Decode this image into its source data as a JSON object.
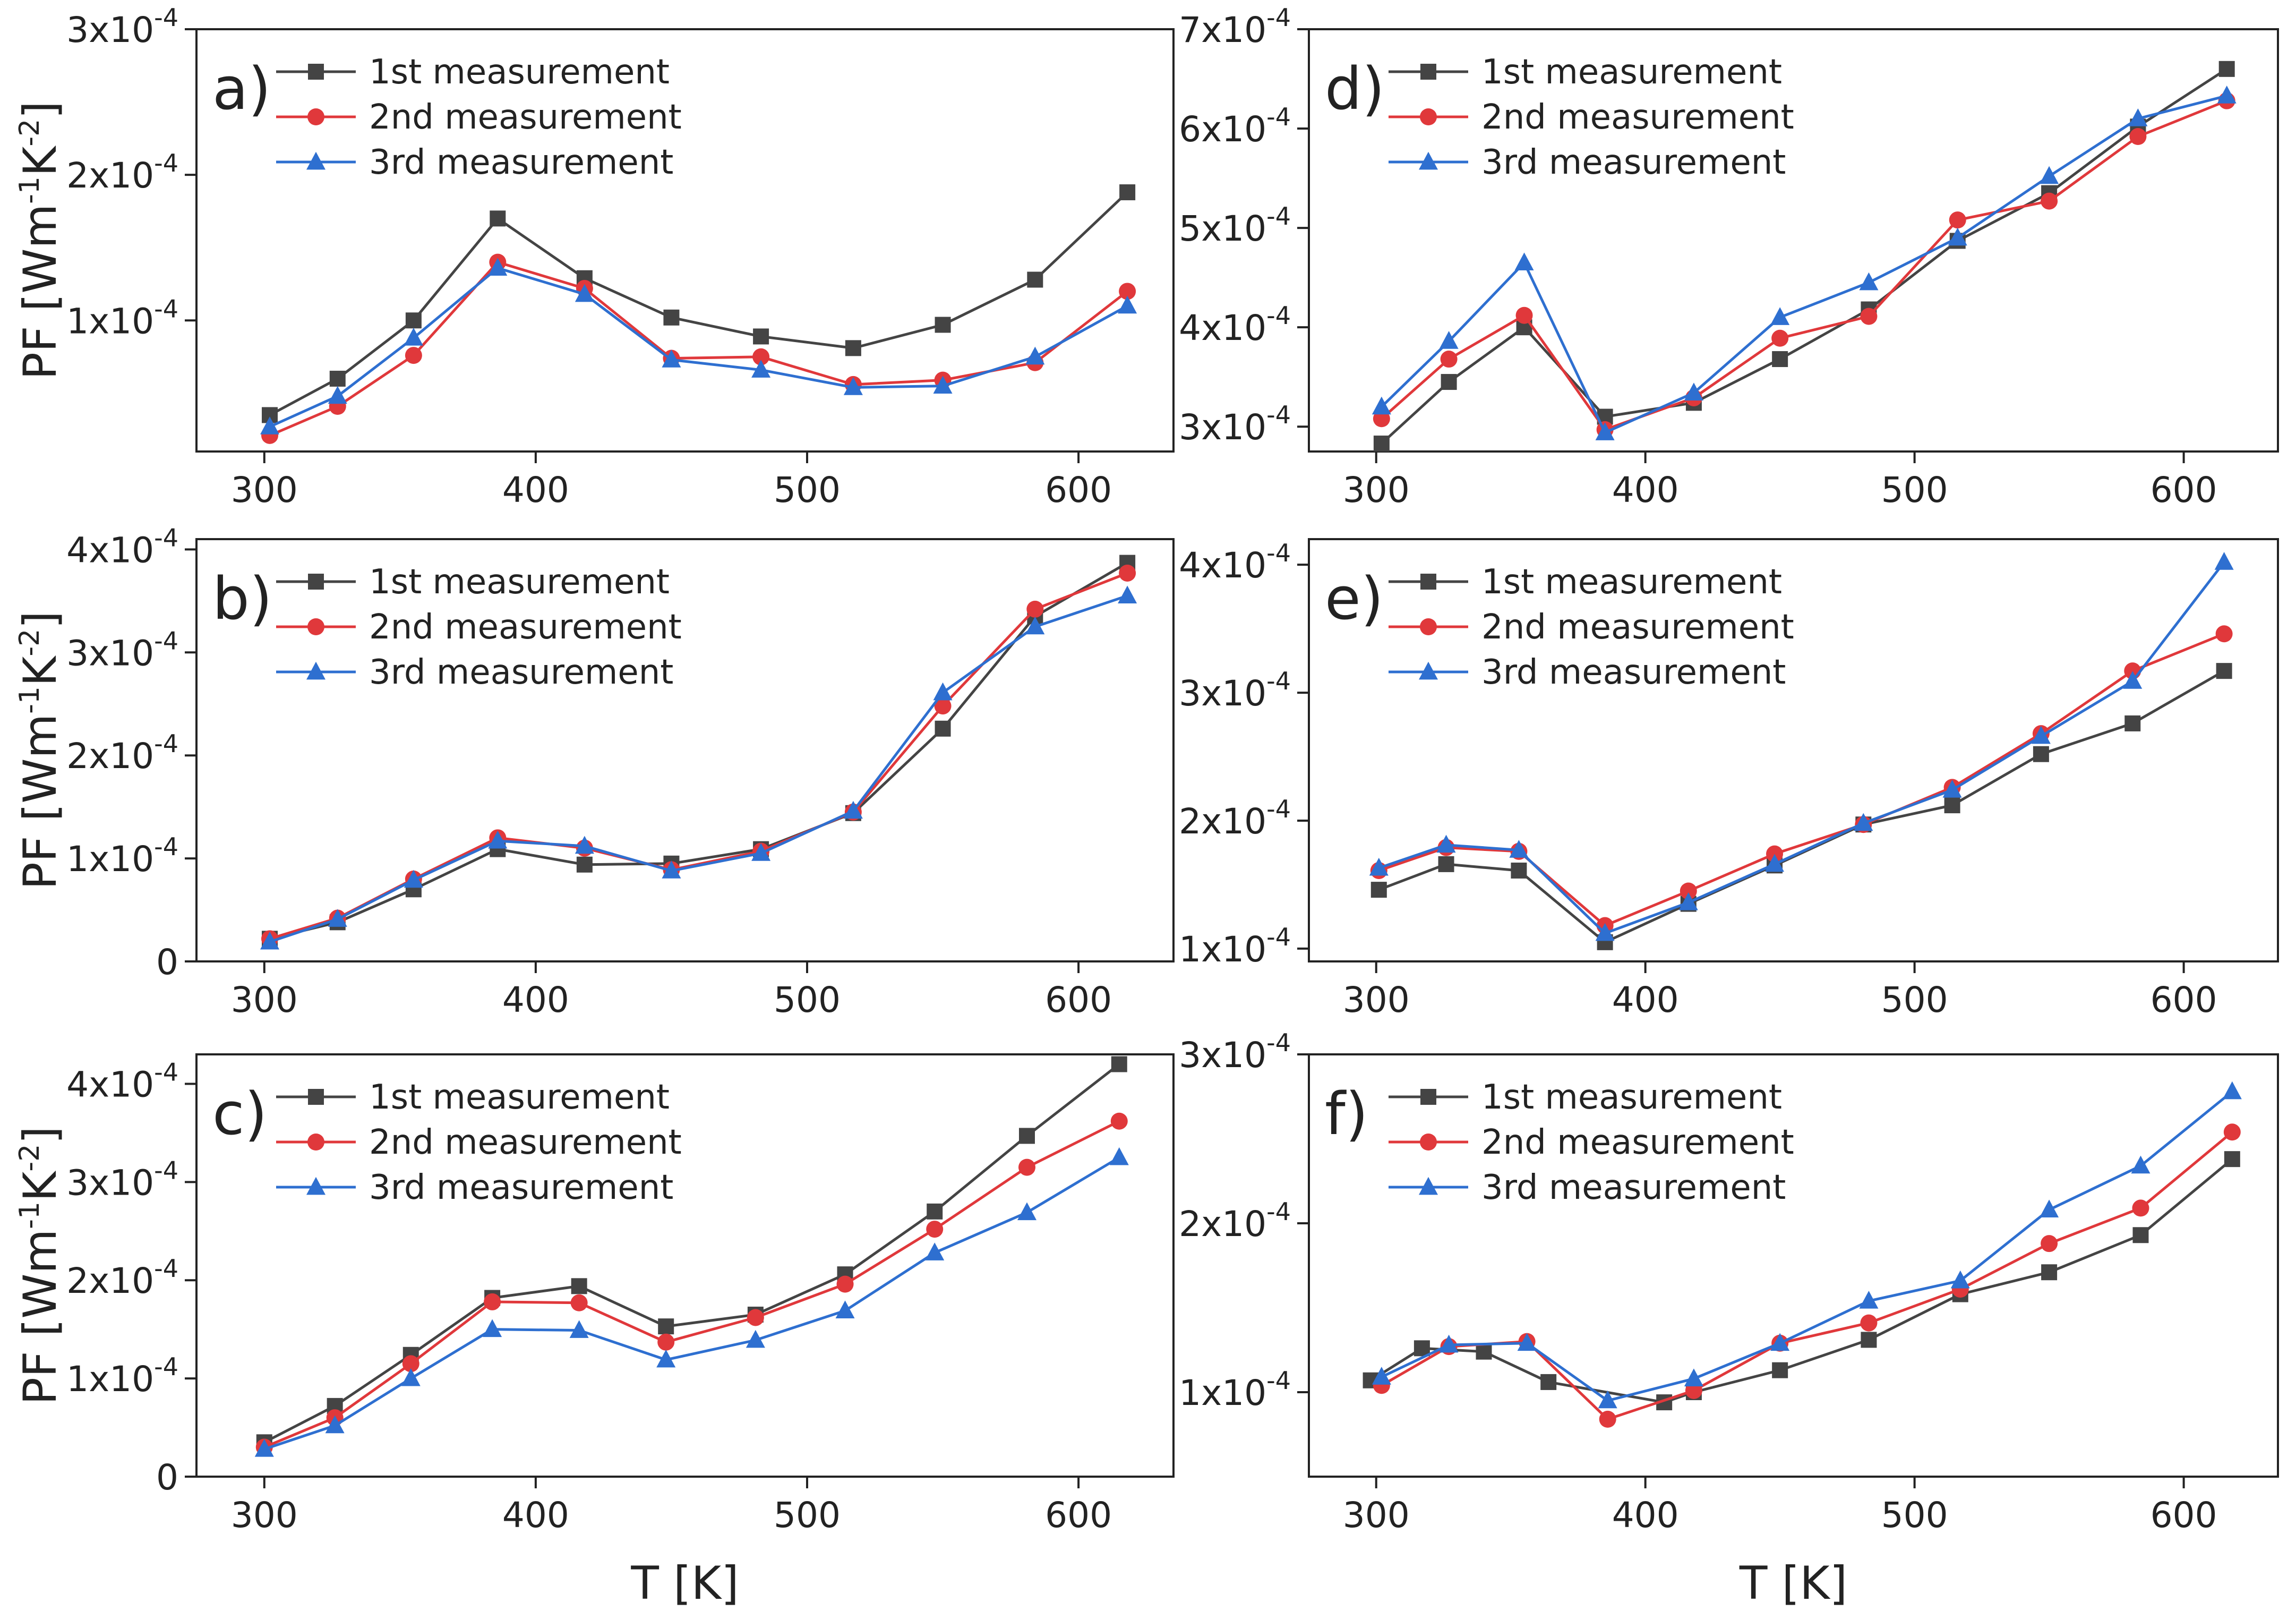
{
  "colors": {
    "s1": "#444444",
    "s2": "#e0383b",
    "s3": "#2e6fd0",
    "axis": "#222222"
  },
  "chart_data": [
    {
      "panel": "a)",
      "type": "line",
      "xlabel": "T [K]",
      "ylabel": "PF [Wm-1K-2]",
      "xlim": [
        275,
        635
      ],
      "ylim": [
        1e-05,
        0.0003
      ],
      "xticks": [
        300,
        400,
        500,
        600
      ],
      "yticks": [
        {
          "v": 0.0001,
          "label": "1x10",
          "exp": "-4"
        },
        {
          "v": 0.0002,
          "label": "2x10",
          "exp": "-4"
        },
        {
          "v": 0.0003,
          "label": "3x10",
          "exp": "-4"
        }
      ],
      "series": [
        {
          "name": "1st measurement",
          "marker": "square",
          "x": [
            302,
            327,
            355,
            386,
            418,
            450,
            483,
            517,
            550,
            584,
            618
          ],
          "y": [
            3.5e-05,
            6e-05,
            0.0001,
            0.00017,
            0.000129,
            0.000102,
            8.9e-05,
            8.1e-05,
            9.7e-05,
            0.000128,
            0.000188
          ]
        },
        {
          "name": "2nd measurement",
          "marker": "circle",
          "x": [
            302,
            327,
            355,
            386,
            418,
            450,
            483,
            517,
            550,
            584,
            618
          ],
          "y": [
            2.1e-05,
            4.1e-05,
            7.6e-05,
            0.00014,
            0.000122,
            7.4e-05,
            7.5e-05,
            5.6e-05,
            5.9e-05,
            7.1e-05,
            0.00012
          ]
        },
        {
          "name": "3rd measurement",
          "marker": "triangle",
          "x": [
            302,
            327,
            355,
            386,
            418,
            450,
            483,
            517,
            550,
            584,
            618
          ],
          "y": [
            2.7e-05,
            4.8e-05,
            8.8e-05,
            0.000136,
            0.000118,
            7.3e-05,
            6.6e-05,
            5.4e-05,
            5.5e-05,
            7.5e-05,
            0.00011
          ]
        }
      ]
    },
    {
      "panel": "b)",
      "type": "line",
      "xlabel": "T [K]",
      "ylabel": "PF [Wm-1K-2]",
      "xlim": [
        275,
        635
      ],
      "ylim": [
        0,
        0.00041
      ],
      "xticks": [
        300,
        400,
        500,
        600
      ],
      "yticks": [
        {
          "v": 0,
          "label": "0",
          "exp": ""
        },
        {
          "v": 0.0001,
          "label": "1x10",
          "exp": "-4"
        },
        {
          "v": 0.0002,
          "label": "2x10",
          "exp": "-4"
        },
        {
          "v": 0.0003,
          "label": "3x10",
          "exp": "-4"
        },
        {
          "v": 0.0004,
          "label": "4x10",
          "exp": "-4"
        }
      ],
      "series": [
        {
          "name": "1st measurement",
          "marker": "square",
          "x": [
            302,
            327,
            355,
            386,
            418,
            450,
            483,
            517,
            550,
            584,
            618
          ],
          "y": [
            2.2e-05,
            3.8e-05,
            7e-05,
            0.000109,
            9.4e-05,
            9.5e-05,
            0.000109,
            0.000144,
            0.000226,
            0.000335,
            0.000387
          ]
        },
        {
          "name": "2nd measurement",
          "marker": "circle",
          "x": [
            302,
            327,
            355,
            386,
            418,
            450,
            483,
            517,
            550,
            584,
            618
          ],
          "y": [
            2.2e-05,
            4.2e-05,
            8e-05,
            0.00012,
            0.00011,
            8.9e-05,
            0.000107,
            0.000145,
            0.000248,
            0.000342,
            0.000377
          ]
        },
        {
          "name": "3rd measurement",
          "marker": "triangle",
          "x": [
            302,
            327,
            355,
            386,
            418,
            450,
            483,
            517,
            550,
            584,
            618
          ],
          "y": [
            1.9e-05,
            4.1e-05,
            7.9e-05,
            0.000117,
            0.000112,
            8.8e-05,
            0.000105,
            0.000146,
            0.000261,
            0.000325,
            0.000355
          ]
        }
      ]
    },
    {
      "panel": "c)",
      "type": "line",
      "xlabel": "T [K]",
      "ylabel": "PF [Wm-1K-2]",
      "xlim": [
        275,
        635
      ],
      "ylim": [
        0,
        0.00043
      ],
      "xticks": [
        300,
        400,
        500,
        600
      ],
      "yticks": [
        {
          "v": 0,
          "label": "0",
          "exp": ""
        },
        {
          "v": 0.0001,
          "label": "1x10",
          "exp": "-4"
        },
        {
          "v": 0.0002,
          "label": "2x10",
          "exp": "-4"
        },
        {
          "v": 0.0003,
          "label": "3x10",
          "exp": "-4"
        },
        {
          "v": 0.0004,
          "label": "4x10",
          "exp": "-4"
        }
      ],
      "series": [
        {
          "name": "1st measurement",
          "marker": "square",
          "x": [
            300,
            326,
            354,
            384,
            416,
            448,
            481,
            514,
            547,
            581,
            615
          ],
          "y": [
            3.5e-05,
            7.2e-05,
            0.000124,
            0.000182,
            0.000194,
            0.000153,
            0.000165,
            0.000206,
            0.00027,
            0.000347,
            0.00042
          ]
        },
        {
          "name": "2nd measurement",
          "marker": "circle",
          "x": [
            300,
            326,
            354,
            384,
            416,
            448,
            481,
            514,
            547,
            581,
            615
          ],
          "y": [
            3e-05,
            6e-05,
            0.000115,
            0.000178,
            0.000177,
            0.000137,
            0.000162,
            0.000196,
            0.000252,
            0.000315,
            0.000362
          ]
        },
        {
          "name": "3rd measurement",
          "marker": "triangle",
          "x": [
            300,
            326,
            354,
            384,
            416,
            448,
            481,
            514,
            547,
            581,
            615
          ],
          "y": [
            2.8e-05,
            5.2e-05,
            0.0001,
            0.00015,
            0.000149,
            0.000119,
            0.000139,
            0.000169,
            0.000228,
            0.000269,
            0.000325
          ]
        }
      ]
    },
    {
      "panel": "d)",
      "type": "line",
      "xlabel": "T [K]",
      "ylabel": "",
      "xlim": [
        275,
        635
      ],
      "ylim": [
        0.000275,
        0.0007
      ],
      "xticks": [
        300,
        400,
        500,
        600
      ],
      "yticks": [
        {
          "v": 0.0003,
          "label": "3x10",
          "exp": "-4"
        },
        {
          "v": 0.0004,
          "label": "4x10",
          "exp": "-4"
        },
        {
          "v": 0.0005,
          "label": "5x10",
          "exp": "-4"
        },
        {
          "v": 0.0006,
          "label": "6x10",
          "exp": "-4"
        },
        {
          "v": 0.0007,
          "label": "7x10",
          "exp": "-4"
        }
      ],
      "series": [
        {
          "name": "1st measurement",
          "marker": "square",
          "x": [
            302,
            327,
            355,
            385,
            418,
            450,
            483,
            516,
            550,
            583,
            616
          ],
          "y": [
            0.000283,
            0.000345,
            0.0004,
            0.00031,
            0.000324,
            0.000368,
            0.000418,
            0.000487,
            0.000535,
            0.000602,
            0.00066
          ]
        },
        {
          "name": "2nd measurement",
          "marker": "circle",
          "x": [
            302,
            327,
            355,
            385,
            418,
            450,
            483,
            516,
            550,
            583,
            616
          ],
          "y": [
            0.000308,
            0.000368,
            0.000412,
            0.000297,
            0.000329,
            0.000389,
            0.000411,
            0.000508,
            0.000527,
            0.000592,
            0.000628
          ]
        },
        {
          "name": "3rd measurement",
          "marker": "triangle",
          "x": [
            302,
            327,
            355,
            385,
            418,
            450,
            483,
            516,
            550,
            583,
            616
          ],
          "y": [
            0.00032,
            0.000386,
            0.000465,
            0.000294,
            0.000334,
            0.00041,
            0.000445,
            0.00049,
            0.000552,
            0.00061,
            0.000633
          ]
        }
      ]
    },
    {
      "panel": "e)",
      "type": "line",
      "xlabel": "T [K]",
      "ylabel": "",
      "xlim": [
        275,
        635
      ],
      "ylim": [
        9e-05,
        0.00042
      ],
      "xticks": [
        300,
        400,
        500,
        600
      ],
      "yticks": [
        {
          "v": 0.0001,
          "label": "1x10",
          "exp": "-4"
        },
        {
          "v": 0.0002,
          "label": "2x10",
          "exp": "-4"
        },
        {
          "v": 0.0003,
          "label": "3x10",
          "exp": "-4"
        },
        {
          "v": 0.0004,
          "label": "4x10",
          "exp": "-4"
        }
      ],
      "series": [
        {
          "name": "1st measurement",
          "marker": "square",
          "x": [
            301,
            326,
            353,
            385,
            416,
            448,
            481,
            514,
            547,
            581,
            615
          ],
          "y": [
            0.000146,
            0.000166,
            0.000161,
            0.000105,
            0.000135,
            0.000165,
            0.000197,
            0.000212,
            0.000252,
            0.000276,
            0.000317
          ]
        },
        {
          "name": "2nd measurement",
          "marker": "circle",
          "x": [
            301,
            326,
            353,
            385,
            416,
            448,
            481,
            514,
            547,
            581,
            615
          ],
          "y": [
            0.000161,
            0.000179,
            0.000176,
            0.000118,
            0.000145,
            0.000174,
            0.000197,
            0.000226,
            0.000268,
            0.000317,
            0.000346
          ]
        },
        {
          "name": "3rd measurement",
          "marker": "triangle",
          "x": [
            301,
            326,
            353,
            385,
            416,
            448,
            481,
            514,
            547,
            581,
            615
          ],
          "y": [
            0.000163,
            0.000181,
            0.000177,
            0.000112,
            0.000136,
            0.000166,
            0.000198,
            0.000224,
            0.000266,
            0.000309,
            0.000402
          ]
        }
      ]
    },
    {
      "panel": "f)",
      "type": "line",
      "xlabel": "T [K]",
      "ylabel": "",
      "xlim": [
        275,
        635
      ],
      "ylim": [
        5e-05,
        0.0003
      ],
      "xticks": [
        300,
        400,
        500,
        600
      ],
      "yticks": [
        {
          "v": 0.0001,
          "label": "1x10",
          "exp": "-4"
        },
        {
          "v": 0.0002,
          "label": "2x10",
          "exp": "-4"
        },
        {
          "v": 0.0003,
          "label": "3x10",
          "exp": "-4"
        }
      ],
      "series": [
        {
          "name": "1st measurement",
          "marker": "square",
          "x": [
            298,
            317,
            340,
            364,
            407,
            418,
            450,
            483,
            517,
            550,
            584,
            618
          ],
          "y": [
            0.000107,
            0.000126,
            0.000124,
            0.000106,
            9.4e-05,
            0.0001,
            0.000113,
            0.000131,
            0.000158,
            0.000171,
            0.000193,
            0.000238
          ]
        },
        {
          "name": "2nd measurement",
          "marker": "circle",
          "x": [
            302,
            327,
            356,
            386,
            418,
            450,
            483,
            517,
            550,
            584,
            618
          ],
          "y": [
            0.000104,
            0.000127,
            0.00013,
            8.4e-05,
            0.000101,
            0.000129,
            0.000141,
            0.000161,
            0.000188,
            0.000209,
            0.000254
          ]
        },
        {
          "name": "3rd measurement",
          "marker": "triangle",
          "x": [
            302,
            327,
            356,
            386,
            418,
            450,
            483,
            517,
            550,
            584,
            618
          ],
          "y": [
            0.000109,
            0.000128,
            0.000129,
            9.5e-05,
            0.000108,
            0.000129,
            0.000154,
            0.000166,
            0.000208,
            0.000234,
            0.000278
          ]
        }
      ]
    }
  ]
}
